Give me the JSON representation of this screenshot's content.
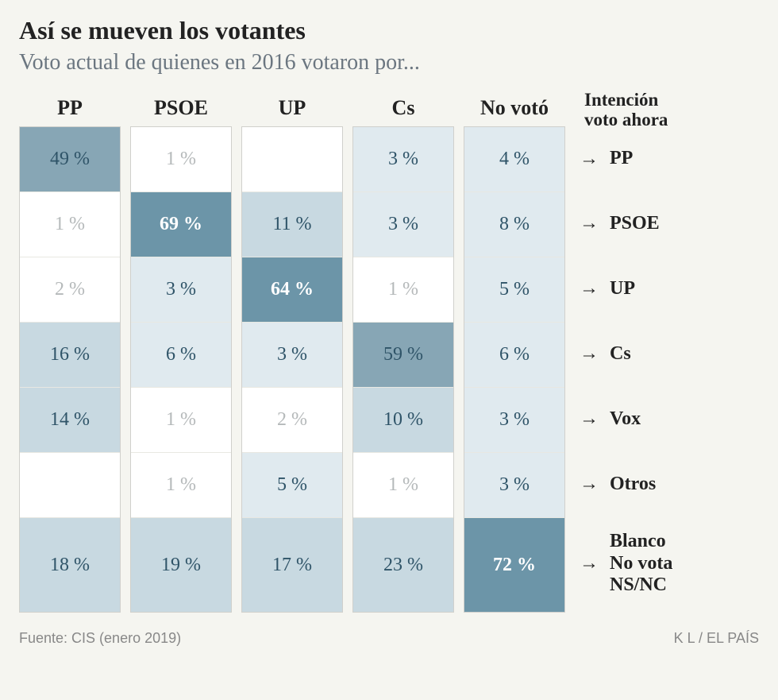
{
  "title": "Así se mueven los votantes",
  "subtitle": "Voto actual de quienes en 2016 votaron por...",
  "columns": [
    "PP",
    "PSOE",
    "UP",
    "Cs",
    "No votó"
  ],
  "legend_header": "Intención voto ahora",
  "row_labels": [
    "PP",
    "PSOE",
    "UP",
    "Cs",
    "Vox",
    "Otros",
    "Blanco\nNo vota\nNS/NC"
  ],
  "row_heights_last_extra": true,
  "colors": {
    "bg": "#f5f5f0",
    "cell_border": "#e8e8e2",
    "col_border": "#d0d0cc",
    "text_dark": "#2f5468",
    "text_light": "#b5b9ba"
  },
  "shade_levels": {
    "0": {
      "bg": "#ffffff",
      "text": "#b5b9ba",
      "bold": false
    },
    "1": {
      "bg": "#e0eaef",
      "text": "#2f5468",
      "bold": false
    },
    "2": {
      "bg": "#c8d9e1",
      "text": "#2f5468",
      "bold": false
    },
    "3": {
      "bg": "#87a6b5",
      "text": "#2f5468",
      "bold": false
    },
    "4": {
      "bg": "#6c95a8",
      "text": "#ffffff",
      "bold": true
    }
  },
  "cells": [
    [
      {
        "v": "49 %",
        "s": 3
      },
      {
        "v": "1 %",
        "s": 0
      },
      {
        "v": "",
        "s": 0
      },
      {
        "v": "3 %",
        "s": 1
      },
      {
        "v": "4 %",
        "s": 1
      }
    ],
    [
      {
        "v": "1 %",
        "s": 0
      },
      {
        "v": "69 %",
        "s": 4
      },
      {
        "v": "11 %",
        "s": 2
      },
      {
        "v": "3 %",
        "s": 1
      },
      {
        "v": "8 %",
        "s": 1
      }
    ],
    [
      {
        "v": "2 %",
        "s": 0
      },
      {
        "v": "3 %",
        "s": 1
      },
      {
        "v": "64 %",
        "s": 4
      },
      {
        "v": "1 %",
        "s": 0
      },
      {
        "v": "5 %",
        "s": 1
      }
    ],
    [
      {
        "v": "16 %",
        "s": 2
      },
      {
        "v": "6 %",
        "s": 1
      },
      {
        "v": "3 %",
        "s": 1
      },
      {
        "v": "59 %",
        "s": 3
      },
      {
        "v": "6 %",
        "s": 1
      }
    ],
    [
      {
        "v": "14 %",
        "s": 2
      },
      {
        "v": "1 %",
        "s": 0
      },
      {
        "v": "2 %",
        "s": 0
      },
      {
        "v": "10 %",
        "s": 2
      },
      {
        "v": "3 %",
        "s": 1
      }
    ],
    [
      {
        "v": "",
        "s": 0
      },
      {
        "v": "1 %",
        "s": 0
      },
      {
        "v": "5 %",
        "s": 1
      },
      {
        "v": "1 %",
        "s": 0
      },
      {
        "v": "3 %",
        "s": 1
      }
    ],
    [
      {
        "v": "18 %",
        "s": 2
      },
      {
        "v": "19 %",
        "s": 2
      },
      {
        "v": "17 %",
        "s": 2
      },
      {
        "v": "23 %",
        "s": 2
      },
      {
        "v": "72 %",
        "s": 4
      }
    ]
  ],
  "footer_left": "Fuente: CIS (enero 2019)",
  "footer_right": "K L / EL PAÍS"
}
